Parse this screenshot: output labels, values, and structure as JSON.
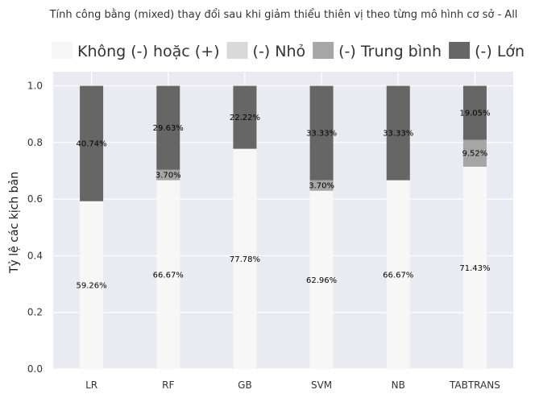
{
  "chart_data": {
    "type": "bar",
    "stacked": true,
    "title": "Tính công bằng (mixed) thay đổi sau khi giảm thiểu thiên vị theo từng mô hình cơ sở  - All",
    "xlabel": "",
    "ylabel": "Tỷ lệ các kịch bản",
    "ylim": [
      0,
      1.05
    ],
    "yticks": [
      "0.0",
      "0.2",
      "0.4",
      "0.6",
      "0.8",
      "1.0"
    ],
    "ytick_values": [
      0,
      0.2,
      0.4,
      0.6,
      0.8,
      1.0
    ],
    "grid": true,
    "legend_position": "top",
    "categories": [
      "LR",
      "RF",
      "GB",
      "SVM",
      "NB",
      "TABTRANS"
    ],
    "series": [
      {
        "name": "Không (-) hoặc (+)",
        "color": "#f7f7f7",
        "values": [
          0.5926,
          0.6667,
          0.7778,
          0.6296,
          0.6667,
          0.7143
        ],
        "labels": [
          "59.26%",
          "66.67%",
          "77.78%",
          "62.96%",
          "66.67%",
          "71.43%"
        ]
      },
      {
        "name": "(-) Nhỏ",
        "color": "#d9d9d9",
        "values": [
          0,
          0,
          0,
          0,
          0,
          0
        ],
        "labels": [
          "",
          "",
          "",
          "",
          "",
          ""
        ]
      },
      {
        "name": "(-) Trung bình",
        "color": "#a6a6a6",
        "values": [
          0,
          0.037,
          0,
          0.037,
          0,
          0.0952
        ],
        "labels": [
          "",
          "3.70%",
          "",
          "3.70%",
          "",
          "9.52%"
        ]
      },
      {
        "name": "(-) Lớn",
        "color": "#666666",
        "values": [
          0.4074,
          0.2963,
          0.2222,
          0.3333,
          0.3333,
          0.1905
        ],
        "labels": [
          "40.74%",
          "29.63%",
          "22.22%",
          "33.33%",
          "33.33%",
          "19.05%"
        ]
      }
    ],
    "plot_background": "#eaeaf2",
    "grid_color": "#ffffff"
  }
}
